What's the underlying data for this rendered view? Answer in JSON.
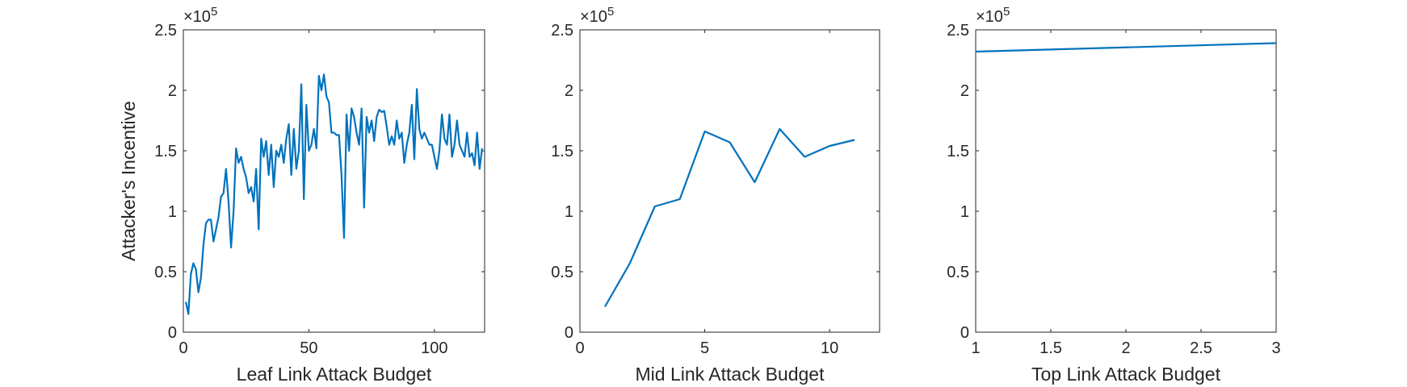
{
  "figure": {
    "background": "#ffffff",
    "line_color": "#0072bd",
    "axis_color": "#262626"
  },
  "chart_data": [
    {
      "type": "line",
      "title": "",
      "xlabel": "Leaf Link Attack Budget",
      "ylabel": "Attacker's Incentive",
      "xlim": [
        0,
        120
      ],
      "ylim": [
        0,
        2.5
      ],
      "y_exponent_label": "×10^5",
      "x_ticks": [
        0,
        50,
        100
      ],
      "x_tick_labels": [
        "0",
        "50",
        "100"
      ],
      "y_ticks": [
        0,
        0.5,
        1,
        1.5,
        2,
        2.5
      ],
      "y_tick_labels": [
        "0",
        "0.5",
        "1",
        "1.5",
        "2",
        "2.5"
      ],
      "grid": false,
      "series": [
        {
          "x": [
            1,
            2,
            3,
            4,
            5,
            6,
            7,
            8,
            9,
            10,
            11,
            12,
            13,
            14,
            15,
            16,
            17,
            18,
            19,
            20,
            21,
            22,
            23,
            24,
            25,
            26,
            27,
            28,
            29,
            30,
            31,
            32,
            33,
            34,
            35,
            36,
            37,
            38,
            39,
            40,
            41,
            42,
            43,
            44,
            45,
            46,
            47,
            48,
            49,
            50,
            51,
            52,
            53,
            54,
            55,
            56,
            57,
            58,
            59,
            60,
            61,
            62,
            63,
            64,
            65,
            66,
            67,
            68,
            69,
            70,
            71,
            72,
            73,
            74,
            75,
            76,
            77,
            78,
            79,
            80,
            81,
            82,
            83,
            84,
            85,
            86,
            87,
            88,
            89,
            90,
            91,
            92,
            93,
            94,
            95,
            96,
            97,
            98,
            99,
            100,
            101,
            102,
            103,
            104,
            105,
            106,
            107,
            108,
            109,
            110,
            111,
            112,
            113,
            114,
            115,
            116,
            117,
            118,
            119
          ],
          "y": [
            0.25,
            0.15,
            0.48,
            0.57,
            0.52,
            0.33,
            0.45,
            0.72,
            0.9,
            0.93,
            0.93,
            0.75,
            0.85,
            0.95,
            1.12,
            1.15,
            1.35,
            1.08,
            0.7,
            1.0,
            1.52,
            1.4,
            1.45,
            1.35,
            1.28,
            1.15,
            1.2,
            1.08,
            1.35,
            0.85,
            1.6,
            1.45,
            1.58,
            1.3,
            1.55,
            1.2,
            1.5,
            1.45,
            1.55,
            1.4,
            1.6,
            1.72,
            1.3,
            1.68,
            1.35,
            1.5,
            2.05,
            1.1,
            1.88,
            1.5,
            1.55,
            1.68,
            1.52,
            2.12,
            2.0,
            2.13,
            1.95,
            1.9,
            1.65,
            1.65,
            1.63,
            1.63,
            1.3,
            0.78,
            1.8,
            1.5,
            1.85,
            1.78,
            1.65,
            1.55,
            1.85,
            1.03,
            1.78,
            1.65,
            1.75,
            1.58,
            1.78,
            1.84,
            1.82,
            1.83,
            1.7,
            1.55,
            1.62,
            1.55,
            1.75,
            1.6,
            1.65,
            1.4,
            1.55,
            1.65,
            1.88,
            1.43,
            2.01,
            1.68,
            1.6,
            1.65,
            1.6,
            1.55,
            1.55,
            1.45,
            1.35,
            1.5,
            1.8,
            1.6,
            1.55,
            1.8,
            1.45,
            1.55,
            1.75,
            1.55,
            1.5,
            1.45,
            1.65,
            1.45,
            1.48,
            1.38,
            1.65,
            1.35,
            1.52
          ]
        }
      ]
    },
    {
      "type": "line",
      "title": "",
      "xlabel": "Mid Link Attack Budget",
      "ylabel": "",
      "xlim": [
        0,
        12
      ],
      "ylim": [
        0,
        2.5
      ],
      "y_exponent_label": "×10^5",
      "x_ticks": [
        0,
        5,
        10
      ],
      "x_tick_labels": [
        "0",
        "5",
        "10"
      ],
      "y_ticks": [
        0,
        0.5,
        1,
        1.5,
        2,
        2.5
      ],
      "y_tick_labels": [
        "0",
        "0.5",
        "1",
        "1.5",
        "2",
        "2.5"
      ],
      "grid": false,
      "series": [
        {
          "x": [
            1,
            2,
            3,
            4,
            5,
            6,
            7,
            8,
            9,
            10,
            11
          ],
          "y": [
            0.21,
            0.57,
            1.04,
            1.1,
            1.66,
            1.57,
            1.24,
            1.68,
            1.45,
            1.54,
            1.59
          ]
        }
      ]
    },
    {
      "type": "line",
      "title": "",
      "xlabel": "Top Link Attack Budget",
      "ylabel": "",
      "xlim": [
        1,
        3
      ],
      "ylim": [
        0,
        2.5
      ],
      "y_exponent_label": "×10^5",
      "x_ticks": [
        1,
        1.5,
        2,
        2.5,
        3
      ],
      "x_tick_labels": [
        "1",
        "1.5",
        "2",
        "2.5",
        "3"
      ],
      "y_ticks": [
        0,
        0.5,
        1,
        1.5,
        2,
        2.5
      ],
      "y_tick_labels": [
        "0",
        "0.5",
        "1",
        "1.5",
        "2",
        "2.5"
      ],
      "grid": false,
      "series": [
        {
          "x": [
            1,
            2,
            3
          ],
          "y": [
            2.32,
            2.355,
            2.39
          ]
        }
      ]
    }
  ]
}
